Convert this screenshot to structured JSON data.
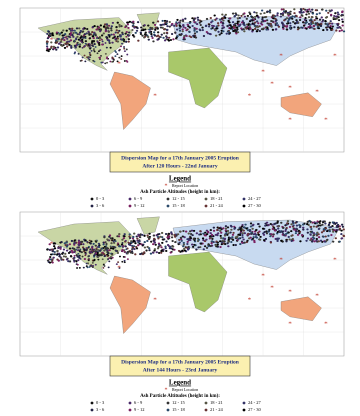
{
  "maps": [
    {
      "title": "Dispersion Map for a 17th January 2005 Eruption",
      "subtitle": "After 120 Hours - 22nd January",
      "legend": {
        "title": "Legend",
        "report": "Report Location",
        "altitude_title": "Ash Particle Altitudes (height in km):",
        "ranges": [
          "0 - 3",
          "3 - 6",
          "6 - 9",
          "9 - 12",
          "12 - 15",
          "15 - 18",
          "18 - 21",
          "21 - 24",
          "24 - 27",
          "27 - 30"
        ]
      }
    },
    {
      "title": "Dispersion Map for a 17th January 2005 Eruption",
      "subtitle": "After 144 Hours - 23rd January",
      "legend": {
        "title": "Legend",
        "report": "Report Location",
        "altitude_title": "Ash Particle Altitudes (height in km):",
        "ranges": [
          "0 - 3",
          "3 - 6",
          "6 - 9",
          "9 - 12",
          "12 - 15",
          "15 - 18",
          "18 - 21",
          "21 - 24",
          "24 - 27",
          "27 - 30"
        ]
      }
    }
  ]
}
